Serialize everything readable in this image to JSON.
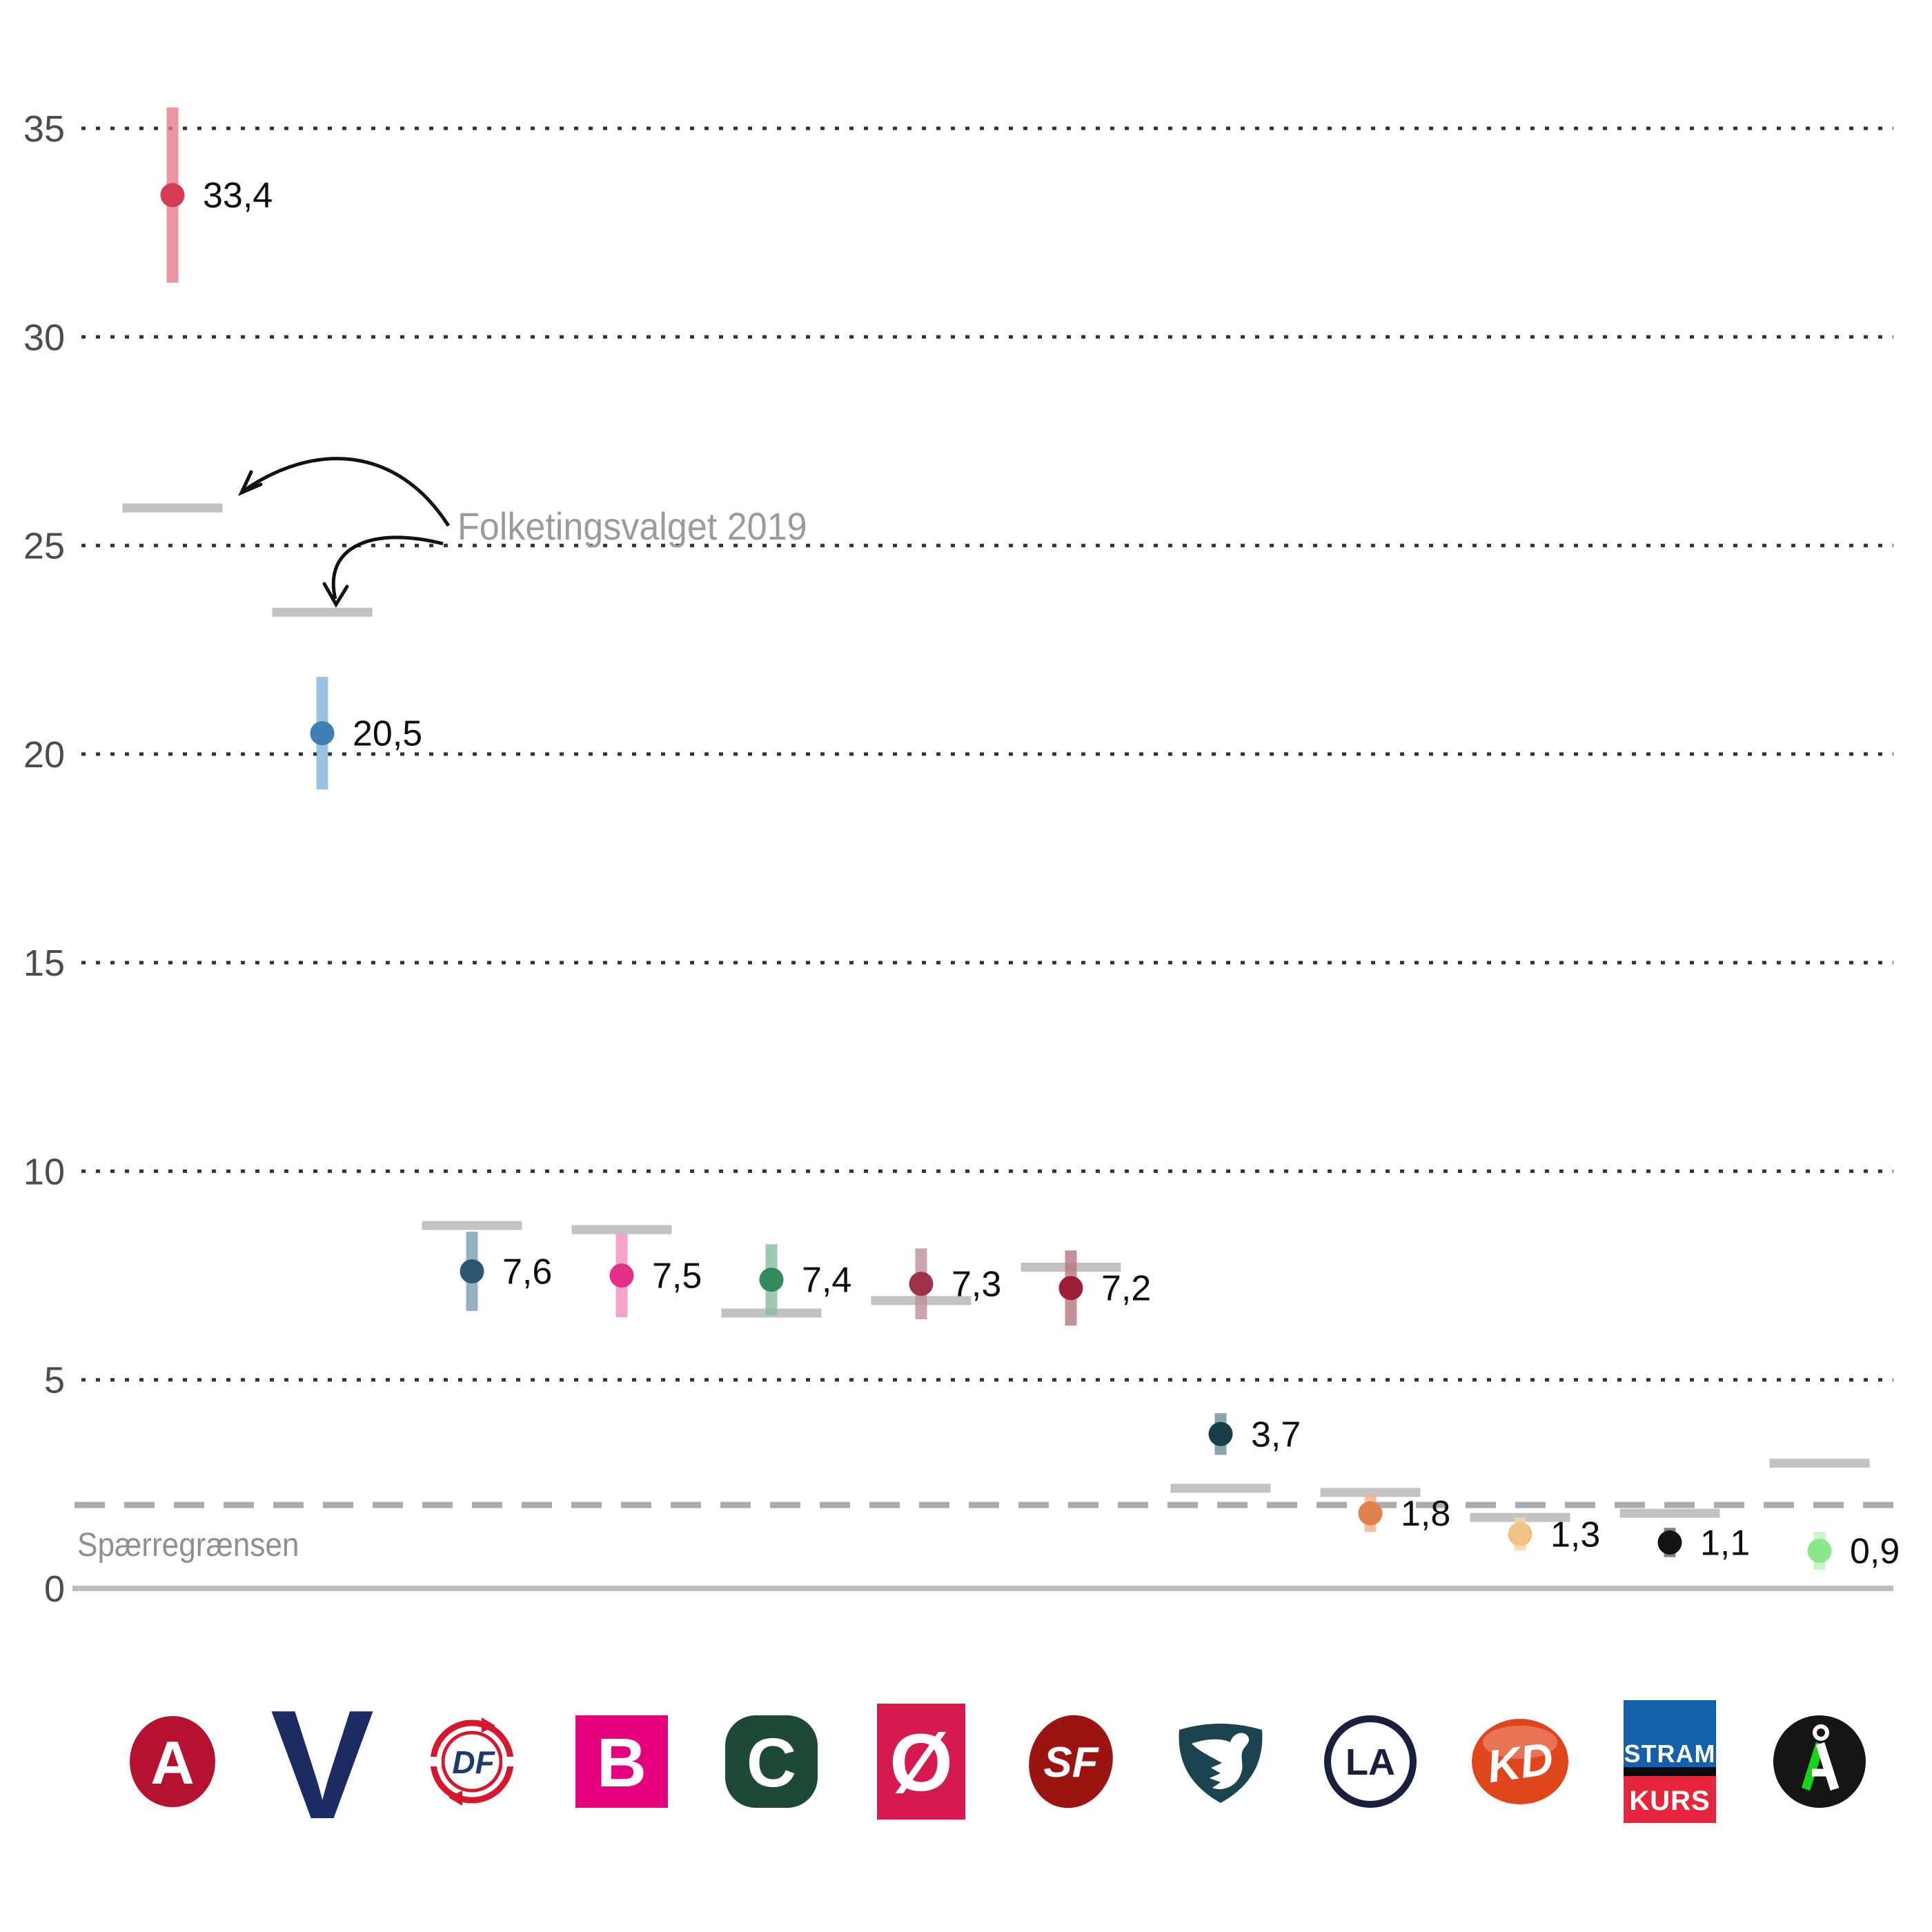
{
  "chart_data": {
    "type": "scatter",
    "title": "",
    "xlabel": "",
    "ylabel": "",
    "ylim": [
      0,
      36.5
    ],
    "yticks": [
      0,
      5,
      10,
      15,
      20,
      25,
      30,
      35
    ],
    "grid": "horizontal-dotted",
    "legend_position": "none",
    "annotation": {
      "text": "Folketingsvalget 2019",
      "points_to": [
        "A",
        "V"
      ]
    },
    "threshold": {
      "value": 2.0,
      "label": "Spærregrænsen"
    },
    "election_line_color": "#c2c2c2",
    "axis_color": "#bdbdbd",
    "tick_label_color": "#4c4c4c",
    "value_label_color": "#0d0d0d",
    "annotation_color": "#9b9b9b",
    "series": [
      {
        "party": "A",
        "poll_value": 33.4,
        "poll_label": "33,4",
        "election_2019": 25.9,
        "ci": 2.1,
        "dot_color": "#d63c52",
        "bar_color": "#e7798a",
        "logo": {
          "kind": "circle-letter",
          "name": "socialdemokratiet-logo",
          "bg": "#b5122f",
          "fg": "#ffffff",
          "text": "A"
        }
      },
      {
        "party": "V",
        "poll_value": 20.5,
        "poll_label": "20,5",
        "election_2019": 23.4,
        "ci": 1.35,
        "dot_color": "#3d7fb4",
        "bar_color": "#7fb4d8",
        "logo": {
          "kind": "letter",
          "name": "venstre-logo",
          "bg": "",
          "fg": "#1a2c63",
          "text": "V"
        }
      },
      {
        "party": "DF",
        "poll_value": 7.6,
        "poll_label": "7,6",
        "election_2019": 8.7,
        "ci": 0.95,
        "dot_color": "#2e566e",
        "bar_color": "#7b9cae",
        "logo": {
          "kind": "ring-df",
          "name": "dansk-folkeparti-logo",
          "bg": "#d6182e",
          "fg": "#1e3a6e",
          "text": "DF"
        }
      },
      {
        "party": "B",
        "poll_value": 7.5,
        "poll_label": "7,5",
        "election_2019": 8.6,
        "ci": 1.0,
        "dot_color": "#e52e86",
        "bar_color": "#ef8fbc",
        "logo": {
          "kind": "square-letter",
          "name": "radikale-venstre-logo",
          "bg": "#e5007e",
          "fg": "#ffffff",
          "text": "B"
        }
      },
      {
        "party": "C",
        "poll_value": 7.4,
        "poll_label": "7,4",
        "election_2019": 6.6,
        "ci": 0.85,
        "dot_color": "#338a5c",
        "bar_color": "#85bd9d",
        "logo": {
          "kind": "rounded-square-letter",
          "name": "konservative-logo",
          "bg": "#1d4a35",
          "fg": "#ffffff",
          "text": "C"
        }
      },
      {
        "party": "Ø",
        "poll_value": 7.3,
        "poll_label": "7,3",
        "election_2019": 6.9,
        "ci": 0.85,
        "dot_color": "#9e3248",
        "bar_color": "#bd8e99",
        "logo": {
          "kind": "tall-rect-letter",
          "name": "enhedslisten-logo",
          "bg": "#d61a4d",
          "fg": "#ffffff",
          "text": "Ø"
        }
      },
      {
        "party": "SF",
        "poll_value": 7.2,
        "poll_label": "7,2",
        "election_2019": 7.7,
        "ci": 0.9,
        "dot_color": "#9c1f35",
        "bar_color": "#b77682",
        "logo": {
          "kind": "blob-letter",
          "name": "sf-logo",
          "bg": "#9b1412",
          "fg": "#ffffff",
          "text": "SF"
        }
      },
      {
        "party": "NB",
        "poll_value": 3.7,
        "poll_label": "3,7",
        "election_2019": 2.4,
        "ci": 0.5,
        "dot_color": "#173f4a",
        "bar_color": "#6f8c94",
        "logo": {
          "kind": "swan-shield",
          "name": "nye-borgerlige-logo",
          "bg": "#1c4450",
          "fg": "#ffffff",
          "text": ""
        }
      },
      {
        "party": "LA",
        "poll_value": 1.8,
        "poll_label": "1,8",
        "election_2019": 2.3,
        "ci": 0.45,
        "dot_color": "#e0824e",
        "bar_color": "#eeb08c",
        "logo": {
          "kind": "outline-circle-letter",
          "name": "liberal-alliance-logo",
          "bg": "#ffffff",
          "fg": "#19203d",
          "text": "LA"
        }
      },
      {
        "party": "KD",
        "poll_value": 1.3,
        "poll_label": "1,3",
        "election_2019": 1.7,
        "ci": 0.4,
        "dot_color": "#f2c184",
        "bar_color": "#f5d5ae",
        "logo": {
          "kind": "glossy-ellipse-letter",
          "name": "kristendemokraterne-logo",
          "bg": "#e0461c",
          "fg": "#ffffff",
          "text": "KD"
        }
      },
      {
        "party": "SK",
        "poll_value": 1.1,
        "poll_label": "1,1",
        "election_2019": 1.8,
        "ci": 0.35,
        "dot_color": "#141414",
        "bar_color": "#606060",
        "logo": {
          "kind": "stram-kurs",
          "name": "stram-kurs-logo",
          "bg": "#1560ac",
          "fg": "#ffffff",
          "text_top": "STRAM",
          "text_bottom": "KURS",
          "bottom_bg": "#e6263c"
        }
      },
      {
        "party": "Å",
        "poll_value": 0.9,
        "poll_label": "0,9",
        "election_2019": 3.0,
        "ci": 0.45,
        "dot_color": "#8ce68c",
        "bar_color": "#b9f2b9",
        "logo": {
          "kind": "alternativet-a",
          "name": "alternativet-logo",
          "bg": "#151515",
          "fg": "#ffffff",
          "accent": "#17d417",
          "text": "Å"
        }
      }
    ]
  }
}
